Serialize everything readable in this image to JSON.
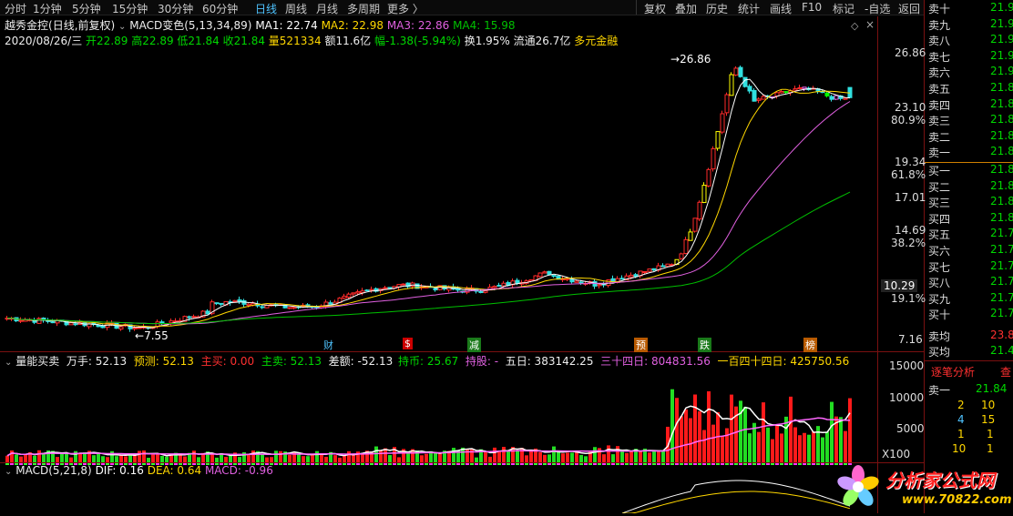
{
  "toolbar": {
    "periods": [
      "分时",
      "1分钟",
      "5分钟",
      "15分钟",
      "30分钟",
      "60分钟",
      "日线",
      "周线",
      "月线",
      "多周期",
      "更多 〉"
    ],
    "active_period": "日线",
    "tools": [
      "复权",
      "叠加",
      "历史",
      "统计",
      "画线",
      "F10",
      "标记",
      "-自选",
      "返回"
    ]
  },
  "header": {
    "stock_name": "越秀金控",
    "adjust": "(日线,前复权)",
    "indicator_name": "MACD变色(5,13,34,89)",
    "ma1": "MA1: 22.74",
    "ma2": "MA2: 22.98",
    "ma3": "MA3: 22.86",
    "ma4": "MA4: 15.98",
    "date": "2020/08/26/三",
    "open": "开22.89",
    "high": "高22.89",
    "low": "低21.84",
    "close": "收21.84",
    "volume": "量521334",
    "amount": "额11.6亿",
    "change": "幅-1.38(-5.94%)",
    "turnover": "换1.95%",
    "float_cap": "流通26.7亿",
    "sector": "多元金融",
    "colors": {
      "ma1": "#ffffff",
      "ma2": "#ffd700",
      "ma3": "#e060e0",
      "ma4": "#00c000",
      "up": "#ff2a2a",
      "down": "#30e0e0"
    }
  },
  "price_axis": {
    "labels": [
      "26.86",
      "23.10",
      "80.9%",
      "19.34",
      "61.8%",
      "17.01",
      "14.69",
      "38.2%",
      "10.29",
      "19.1%",
      "7.16"
    ]
  },
  "annotations": {
    "high_marker": "26.86",
    "low_marker": "7.55",
    "event_tags": [
      "财",
      "$",
      "减",
      "预",
      "跌",
      "榜"
    ]
  },
  "volume_panel": {
    "title": "量能买卖",
    "wanshou": "万手: 52.13",
    "yuce": "预测: 52.13",
    "zhumai": "主买: 0.00",
    "zhumai2": "主卖: 52.13",
    "cha": "差额: -52.13",
    "chibi": "持币: 25.67",
    "chigu": "持股: -",
    "wuri": "五日: 383142.25",
    "sanshisi": "三十四日: 804831.56",
    "yibai": "一百四十四日: 425750.56",
    "axis": [
      "15000",
      "10000",
      "5000",
      "X100"
    ]
  },
  "macd_panel": {
    "title": "MACD(5,21,8)",
    "dif": "DIF: 0.16",
    "dea": "DEA: 0.64",
    "macd": "MACD: -0.96"
  },
  "order_book": {
    "sell": [
      {
        "label": "卖十",
        "price": "21.9"
      },
      {
        "label": "卖九",
        "price": "21.9"
      },
      {
        "label": "卖八",
        "price": "21.9"
      },
      {
        "label": "卖七",
        "price": "21.9"
      },
      {
        "label": "卖六",
        "price": "21.9"
      },
      {
        "label": "卖五",
        "price": "21.8"
      },
      {
        "label": "卖四",
        "price": "21.8"
      },
      {
        "label": "卖三",
        "price": "21.8"
      },
      {
        "label": "卖二",
        "price": "21.8"
      },
      {
        "label": "卖一",
        "price": "21.8"
      }
    ],
    "buy": [
      {
        "label": "买一",
        "price": "21.8"
      },
      {
        "label": "买二",
        "price": "21.8"
      },
      {
        "label": "买三",
        "price": "21.8"
      },
      {
        "label": "买四",
        "price": "21.8"
      },
      {
        "label": "买五",
        "price": "21.7"
      },
      {
        "label": "买六",
        "price": "21.7"
      },
      {
        "label": "买七",
        "price": "21.7"
      },
      {
        "label": "买八",
        "price": "21.7"
      },
      {
        "label": "买九",
        "price": "21.7"
      },
      {
        "label": "买十",
        "price": "21.7"
      }
    ],
    "sell_avg": {
      "label": "卖均",
      "price": "23.8"
    },
    "buy_avg": {
      "label": "买均",
      "price": "21.4"
    },
    "tick_title": "逐笔分析",
    "tick_link": "查",
    "tick_row1": {
      "label": "卖一",
      "value": "21.84"
    },
    "tick_rows": [
      {
        "a": "2",
        "b": "10"
      },
      {
        "a": "4",
        "b": "15"
      },
      {
        "a": "1",
        "b": "1"
      },
      {
        "a": "10",
        "b": "1"
      }
    ]
  },
  "watermark": {
    "text": "分析家公式网",
    "url": "www.70822.com"
  },
  "chart_data": {
    "type": "candlestick",
    "title": "越秀金控 (日线,前复权)",
    "ylim": [
      7.16,
      26.86
    ],
    "price_scale": "log",
    "candles_summary": "daily candles from ~7.5 rising slowly to ~10, surging to peak 26.86 then consolidating near 22-23",
    "last_candle": {
      "open": 22.89,
      "high": 22.89,
      "low": 21.84,
      "close": 21.84
    },
    "ma_last": {
      "MA1": 22.74,
      "MA2": 22.98,
      "MA3": 22.86,
      "MA4": 15.98
    },
    "volume_ylim": [
      0,
      15000
    ]
  }
}
